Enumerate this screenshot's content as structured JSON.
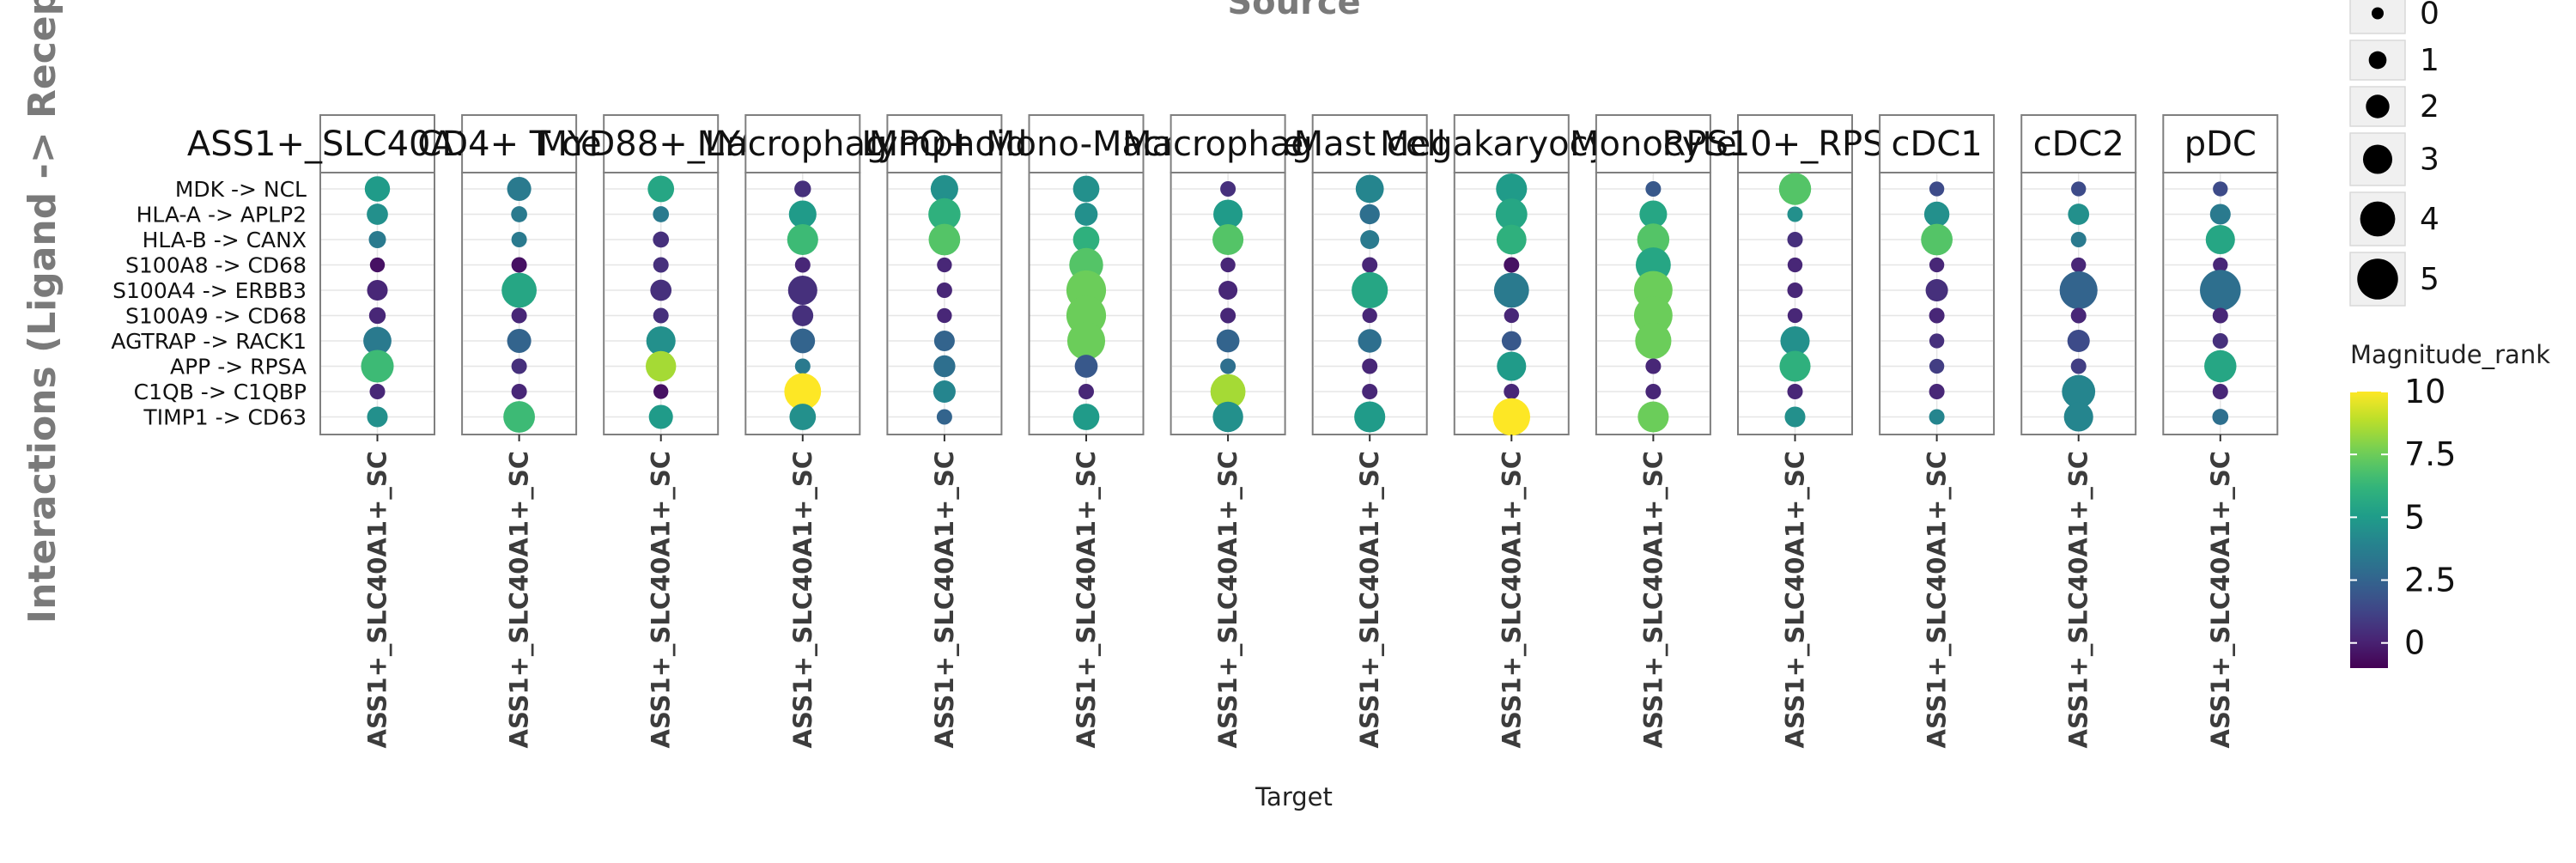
{
  "chart_data": {
    "type": "scatter",
    "subtype": "faceted dot plot",
    "title": "Source",
    "xlabel": "Target",
    "ylabel": "Interactions (Ligand -> Receptor)",
    "facets": [
      "ASS1+_SLC40A1+_SC",
      "CD4+ T cell",
      "MYD88+_LY6E",
      "Macrophage",
      "Lymphoid",
      "MPO+ Mono-Macrophage",
      "Macrophage",
      "Mast cell",
      "Megakaryocyte",
      "Monocyte",
      "RPS10+_RPS17",
      "cDC1",
      "cDC2",
      "pDC"
    ],
    "x_category": "ASS1+_SLC40A1+_SC",
    "interactions": [
      "MDK -> NCL",
      "HLA-A -> APLP2",
      "HLA-B -> CANX",
      "S100A8 -> CD68",
      "S100A4 -> ERBB3",
      "S100A9 -> CD68",
      "AGTRAP -> RACK1",
      "APP -> RPSA",
      "C1QB -> C1QBP",
      "TIMP1 -> CD63"
    ],
    "size_legend": {
      "title": "",
      "values": [
        0,
        1,
        2,
        3,
        4,
        5
      ]
    },
    "color_legend": {
      "title": "Magnitude_rank",
      "ticks": [
        "0",
        "2.5",
        "5",
        "7.5",
        "10"
      ],
      "range": [
        -1,
        10
      ],
      "colormap": "viridis"
    },
    "grid": true,
    "points": [
      {
        "facet": "ASS1+_SLC40A1+_SC",
        "size": [
          2.3,
          1.6,
          0.9,
          0.5,
          1.5,
          0.8,
          2.8,
          3.6,
          0.6,
          1.5
        ],
        "magnitude_rank": [
          5.0,
          4.5,
          3.5,
          -0.5,
          0.2,
          0.2,
          3.5,
          6.5,
          0.2,
          4.5
        ]
      },
      {
        "facet": "CD4+ T cell",
        "size": [
          2.1,
          0.7,
          0.6,
          0.6,
          4.0,
          0.6,
          2.1,
          0.6,
          0.6,
          3.4
        ],
        "magnitude_rank": [
          3.5,
          3.5,
          3.5,
          -0.5,
          5.5,
          0.2,
          2.5,
          0.5,
          0.2,
          6.5
        ]
      },
      {
        "facet": "MYD88+_LY6E",
        "size": [
          2.5,
          0.7,
          0.7,
          0.6,
          1.6,
          0.6,
          3.0,
          3.2,
          0.5,
          2.1
        ],
        "magnitude_rank": [
          5.5,
          3.5,
          0.5,
          0.5,
          0.5,
          0.5,
          4.5,
          8.5,
          -0.5,
          5.0
        ]
      },
      {
        "facet": "Macrophage",
        "size": [
          0.8,
          2.7,
          3.3,
          0.6,
          3.0,
          1.6,
          2.2,
          0.6,
          4.3,
          2.5
        ],
        "magnitude_rank": [
          0.5,
          5.0,
          6.5,
          0.2,
          0.5,
          0.5,
          2.5,
          3.5,
          10.0,
          4.5
        ]
      },
      {
        "facet": "Lymphoid",
        "size": [
          2.7,
          3.5,
          3.4,
          0.5,
          0.6,
          0.5,
          1.5,
          1.7,
          1.8,
          0.6
        ],
        "magnitude_rank": [
          4.5,
          6.0,
          7.0,
          0.2,
          0.2,
          0.2,
          2.5,
          3.0,
          4.0,
          2.5
        ]
      },
      {
        "facet": "MPO+ Mono-Macrophage",
        "size": [
          2.5,
          1.9,
          2.5,
          3.8,
          4.8,
          4.8,
          4.5,
          1.9,
          0.6,
          2.5
        ],
        "magnitude_rank": [
          4.5,
          4.5,
          6.0,
          7.0,
          7.5,
          7.5,
          7.5,
          2.0,
          0.2,
          5.0
        ]
      },
      {
        "facet": "Macrophage",
        "size": [
          0.6,
          3.0,
          3.3,
          0.5,
          1.2,
          0.6,
          1.9,
          0.6,
          4.0,
          3.2
        ],
        "magnitude_rank": [
          0.5,
          5.0,
          7.0,
          0.2,
          0.2,
          0.2,
          2.5,
          3.0,
          8.5,
          4.5
        ]
      },
      {
        "facet": "Mast cell",
        "size": [
          2.8,
          1.4,
          1.2,
          0.6,
          4.2,
          0.5,
          2.0,
          0.6,
          0.6,
          3.3
        ],
        "magnitude_rank": [
          4.0,
          3.0,
          3.5,
          0.2,
          5.5,
          0.2,
          3.0,
          0.2,
          0.2,
          5.0
        ]
      },
      {
        "facet": "Megakaryocyte",
        "size": [
          3.3,
          3.4,
          3.1,
          0.6,
          4.0,
          0.5,
          1.3,
          3.0,
          0.6,
          4.4
        ],
        "magnitude_rank": [
          5.0,
          5.5,
          6.0,
          -0.5,
          3.5,
          0.2,
          2.0,
          5.0,
          0.2,
          10.0
        ]
      },
      {
        "facet": "Monocyte",
        "size": [
          0.6,
          2.7,
          3.5,
          4.0,
          4.6,
          4.6,
          4.2,
          0.6,
          0.6,
          3.3
        ],
        "magnitude_rank": [
          2.0,
          5.5,
          7.0,
          5.5,
          7.5,
          7.5,
          7.5,
          0.2,
          0.2,
          7.5
        ]
      },
      {
        "facet": "RPS10+_RPS17",
        "size": [
          3.5,
          0.6,
          0.6,
          0.5,
          0.6,
          0.5,
          3.0,
          3.3,
          0.6,
          1.5
        ],
        "magnitude_rank": [
          7.0,
          4.5,
          0.5,
          0.2,
          0.2,
          0.2,
          4.5,
          6.0,
          0.2,
          4.5
        ]
      },
      {
        "facet": "cDC1",
        "size": [
          0.5,
          2.3,
          3.4,
          0.5,
          1.8,
          0.6,
          0.5,
          0.5,
          0.6,
          0.6
        ],
        "magnitude_rank": [
          1.5,
          4.5,
          7.0,
          0.2,
          0.5,
          0.2,
          0.5,
          1.0,
          0.2,
          4.0
        ]
      },
      {
        "facet": "cDC2",
        "size": [
          0.5,
          1.6,
          0.6,
          0.5,
          4.5,
          0.6,
          1.8,
          0.6,
          3.7,
          3.0
        ],
        "magnitude_rank": [
          1.5,
          4.5,
          3.5,
          0.2,
          2.5,
          0.2,
          1.5,
          1.0,
          4.0,
          4.0
        ]
      },
      {
        "facet": "pDC",
        "size": [
          0.5,
          1.5,
          3.0,
          0.5,
          5.0,
          0.6,
          0.6,
          3.5,
          0.6,
          0.7
        ],
        "magnitude_rank": [
          1.5,
          3.5,
          5.5,
          0.2,
          3.0,
          0.2,
          0.5,
          5.5,
          0.2,
          3.0
        ]
      }
    ]
  }
}
